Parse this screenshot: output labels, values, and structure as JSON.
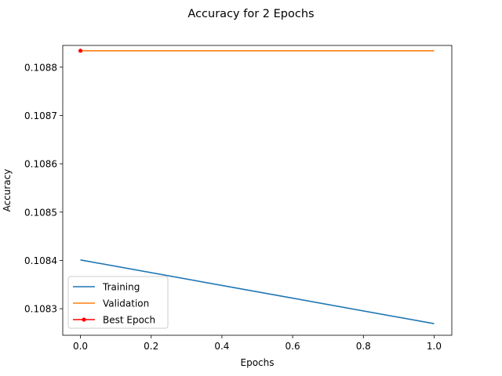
{
  "chart_data": {
    "type": "line",
    "title": "Accuracy for 2 Epochs",
    "xlabel": "Epochs",
    "ylabel": "Accuracy",
    "xlim": [
      -0.05,
      1.05
    ],
    "ylim": [
      0.108245,
      0.108845
    ],
    "x_ticks": [
      0.0,
      0.2,
      0.4,
      0.6,
      0.8,
      1.0
    ],
    "x_tick_labels": [
      "0.0",
      "0.2",
      "0.4",
      "0.6",
      "0.8",
      "1.0"
    ],
    "y_ticks": [
      0.1083,
      0.1084,
      0.1085,
      0.1086,
      0.1087,
      0.1088
    ],
    "y_tick_labels": [
      "0.1083",
      "0.1084",
      "0.1085",
      "0.1086",
      "0.1087",
      "0.1088"
    ],
    "grid": false,
    "legend_position": "lower-left",
    "series": [
      {
        "name": "Training",
        "color": "#1f77b4",
        "x": [
          0,
          1
        ],
        "y": [
          0.108401,
          0.108269
        ]
      },
      {
        "name": "Validation",
        "color": "#ff7f0e",
        "x": [
          0,
          1
        ],
        "y": [
          0.108834,
          0.108834
        ]
      },
      {
        "name": "Best Epoch",
        "color": "#ff0000",
        "x": [
          0
        ],
        "y": [
          0.108834
        ],
        "marker": "point"
      }
    ]
  }
}
